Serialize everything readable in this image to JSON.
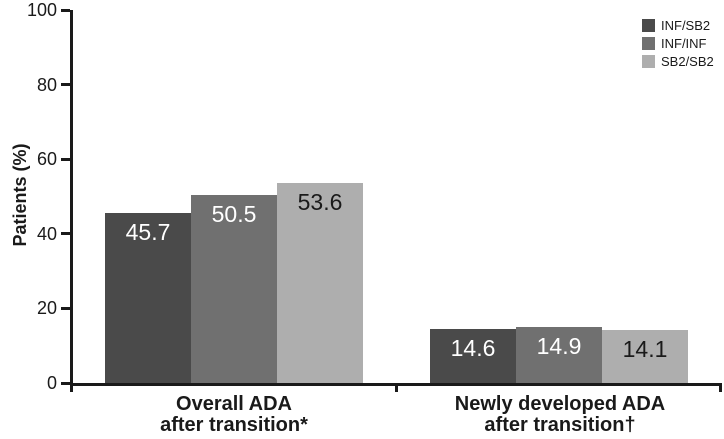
{
  "chart_data": {
    "type": "bar",
    "title": "",
    "ylabel": "Patients (%)",
    "xlabel": "",
    "ylim": [
      0,
      100
    ],
    "yticks": [
      0,
      20,
      40,
      60,
      80,
      100
    ],
    "grid": false,
    "legend_position": "top-right",
    "bar_labels_shown": true,
    "categories": [
      "Overall ADA\nafter transition*",
      "Newly developed ADA\nafter transition†"
    ],
    "series": [
      {
        "name": "INF/SB2",
        "values": [
          45.7,
          14.6
        ],
        "color": "#4a4a4a",
        "label_color": "#ffffff"
      },
      {
        "name": "INF/INF",
        "values": [
          50.5,
          14.9
        ],
        "color": "#707070",
        "label_color": "#ffffff"
      },
      {
        "name": "SB2/SB2",
        "values": [
          53.6,
          14.1
        ],
        "color": "#aeaeae",
        "label_color": "#1a1a1a"
      }
    ],
    "axis_color": "#1a1a1a"
  }
}
